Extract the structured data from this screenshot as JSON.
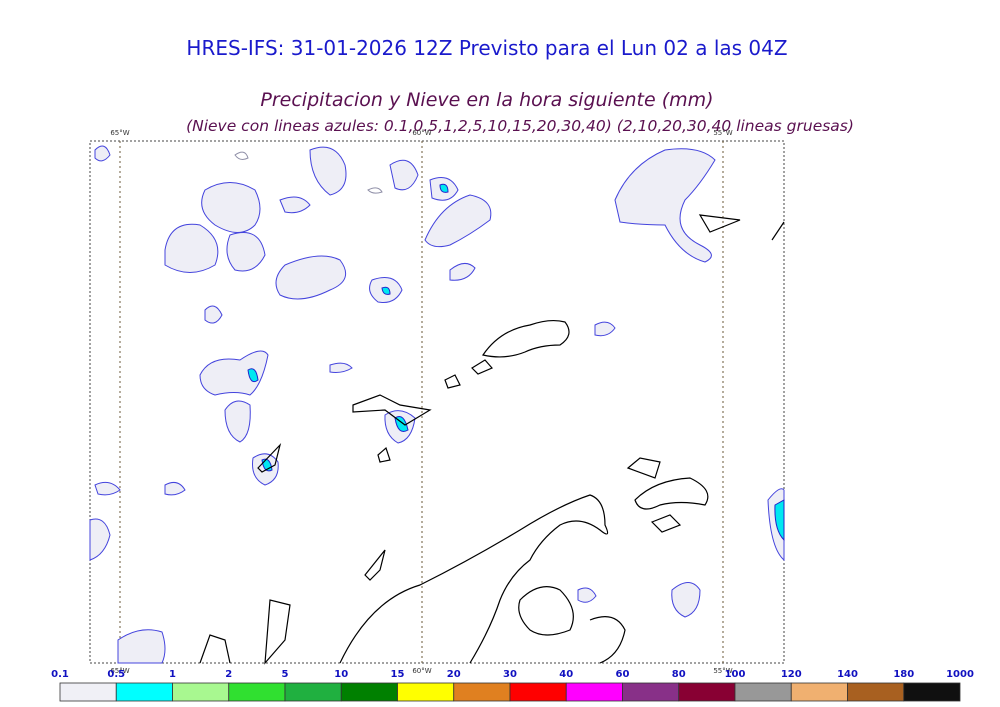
{
  "header": {
    "title": "HRES-IFS: 31-01-2026 12Z Previsto para el Lun 02 a las 04Z",
    "subtitle": "Precipitacion y Nieve en la hora siguiente (mm)",
    "note": "(Nieve con lineas azules: 0.1,0.5,1,2,5,10,15,20,30,40)  (2,10,20,30,40 lineas gruesas)"
  },
  "map": {
    "meridians": [
      "65°W",
      "60°W",
      "55°W"
    ]
  },
  "colorbar": {
    "levels": [
      "0.1",
      "0.5",
      "1",
      "2",
      "5",
      "10",
      "15",
      "20",
      "30",
      "40",
      "60",
      "80",
      "100",
      "120",
      "140",
      "180",
      "1000"
    ],
    "colors": [
      "#f0f0f6",
      "#00ffff",
      "#a8f890",
      "#30e030",
      "#20b040",
      "#008000",
      "#ffff00",
      "#e08020",
      "#ff0000",
      "#ff00ff",
      "#883088",
      "#880033",
      "#989898",
      "#f0b070",
      "#a86020",
      "#101010"
    ]
  }
}
